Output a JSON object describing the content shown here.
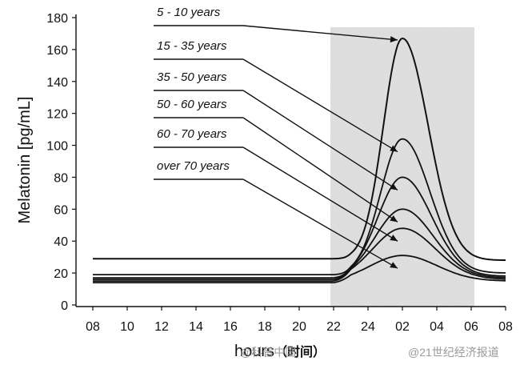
{
  "chart_data": {
    "type": "line",
    "ylabel": "Melatonin [pg/mL]",
    "xlabel": "hours",
    "xlabel_suffix": "（时间）",
    "ylim": [
      0,
      180
    ],
    "yticks": [
      0,
      20,
      40,
      60,
      80,
      100,
      120,
      140,
      160,
      180
    ],
    "x_ticks": [
      "08",
      "10",
      "12",
      "14",
      "16",
      "18",
      "20",
      "22",
      "24",
      "02",
      "04",
      "06",
      "08"
    ],
    "shaded_region": {
      "from": "22",
      "to": "06"
    },
    "grid": false,
    "series": [
      {
        "name": "5 - 10 years",
        "baseline": 29,
        "peak": 167,
        "end": 28
      },
      {
        "name": "15 - 35 years",
        "baseline": 19,
        "peak": 104,
        "end": 20
      },
      {
        "name": "35 - 50 years",
        "baseline": 17,
        "peak": 80,
        "end": 18
      },
      {
        "name": "50 - 60 years",
        "baseline": 16,
        "peak": 60,
        "end": 17
      },
      {
        "name": "60 - 70 years",
        "baseline": 15,
        "peak": 48,
        "end": 16
      },
      {
        "name": "over 70 years",
        "baseline": 14,
        "peak": 31,
        "end": 15
      }
    ],
    "peak_time": "02"
  },
  "watermark": {
    "left": "@科普中国",
    "right": "@21世纪经济报道"
  }
}
